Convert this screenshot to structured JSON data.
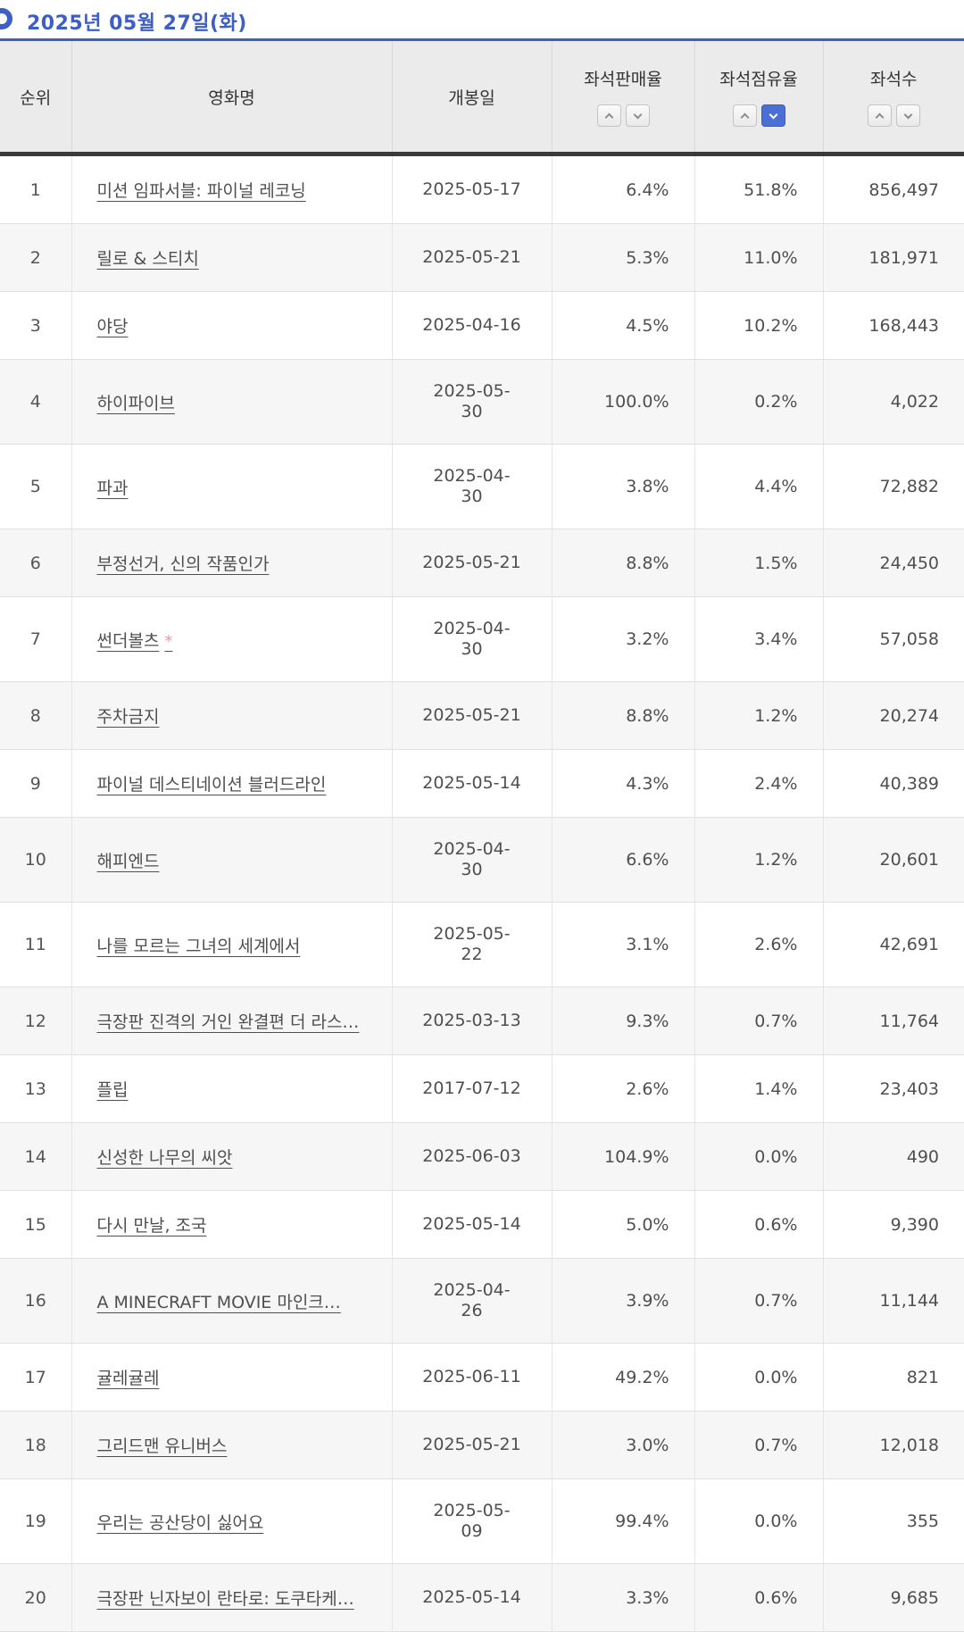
{
  "page": {
    "title": "2025년 05월 27일(화)"
  },
  "colors": {
    "accent": "#3d5ec5",
    "sort_active": "#4a6fd6",
    "star_pink": "#ee8fb4",
    "header_bg": "#ebebeb",
    "header_border": "#3a3a3a"
  },
  "table": {
    "columns": [
      {
        "key": "rank",
        "label": "순위",
        "sortable": false
      },
      {
        "key": "title",
        "label": "영화명",
        "sortable": false
      },
      {
        "key": "release",
        "label": "개봉일",
        "sortable": false
      },
      {
        "key": "seat_sales_rate",
        "label": "좌석판매율",
        "sortable": true,
        "active_sort": null
      },
      {
        "key": "seat_share_rate",
        "label": "좌석점유율",
        "sortable": true,
        "active_sort": "desc"
      },
      {
        "key": "seat_count",
        "label": "좌석수",
        "sortable": true,
        "active_sort": null
      }
    ],
    "rows": [
      {
        "rank": "1",
        "title": "미션 임파서블: 파이널 레코닝",
        "title_mark": "",
        "release": "2025-05-17",
        "release_two_line": false,
        "seat_sales_rate": "6.4%",
        "seat_share_rate": "51.8%",
        "seat_count": "856,497"
      },
      {
        "rank": "2",
        "title": "릴로 & 스티치",
        "title_mark": "",
        "release": "2025-05-21",
        "release_two_line": false,
        "seat_sales_rate": "5.3%",
        "seat_share_rate": "11.0%",
        "seat_count": "181,971"
      },
      {
        "rank": "3",
        "title": "야당",
        "title_mark": "",
        "release": "2025-04-16",
        "release_two_line": false,
        "seat_sales_rate": "4.5%",
        "seat_share_rate": "10.2%",
        "seat_count": "168,443"
      },
      {
        "rank": "4",
        "title": "하이파이브",
        "title_mark": "",
        "release": "2025-05-30",
        "release_two_line": true,
        "seat_sales_rate": "100.0%",
        "seat_share_rate": "0.2%",
        "seat_count": "4,022"
      },
      {
        "rank": "5",
        "title": "파과",
        "title_mark": "",
        "release": "2025-04-30",
        "release_two_line": true,
        "seat_sales_rate": "3.8%",
        "seat_share_rate": "4.4%",
        "seat_count": "72,882"
      },
      {
        "rank": "6",
        "title": "부정선거, 신의 작품인가",
        "title_mark": "",
        "release": "2025-05-21",
        "release_two_line": false,
        "seat_sales_rate": "8.8%",
        "seat_share_rate": "1.5%",
        "seat_count": "24,450"
      },
      {
        "rank": "7",
        "title": "썬더볼츠",
        "title_mark": "*",
        "release": "2025-04-30",
        "release_two_line": true,
        "seat_sales_rate": "3.2%",
        "seat_share_rate": "3.4%",
        "seat_count": "57,058"
      },
      {
        "rank": "8",
        "title": "주차금지",
        "title_mark": "",
        "release": "2025-05-21",
        "release_two_line": false,
        "seat_sales_rate": "8.8%",
        "seat_share_rate": "1.2%",
        "seat_count": "20,274"
      },
      {
        "rank": "9",
        "title": "파이널 데스티네이션 블러드라인",
        "title_mark": "",
        "release": "2025-05-14",
        "release_two_line": false,
        "seat_sales_rate": "4.3%",
        "seat_share_rate": "2.4%",
        "seat_count": "40,389"
      },
      {
        "rank": "10",
        "title": "해피엔드",
        "title_mark": "",
        "release": "2025-04-30",
        "release_two_line": true,
        "seat_sales_rate": "6.6%",
        "seat_share_rate": "1.2%",
        "seat_count": "20,601"
      },
      {
        "rank": "11",
        "title": "나를 모르는 그녀의 세계에서",
        "title_mark": "",
        "release": "2025-05-22",
        "release_two_line": true,
        "seat_sales_rate": "3.1%",
        "seat_share_rate": "2.6%",
        "seat_count": "42,691"
      },
      {
        "rank": "12",
        "title": "극장판 진격의 거인 완결편 더 라스…",
        "title_mark": "",
        "release": "2025-03-13",
        "release_two_line": false,
        "seat_sales_rate": "9.3%",
        "seat_share_rate": "0.7%",
        "seat_count": "11,764"
      },
      {
        "rank": "13",
        "title": "플립",
        "title_mark": "",
        "release": "2017-07-12",
        "release_two_line": false,
        "seat_sales_rate": "2.6%",
        "seat_share_rate": "1.4%",
        "seat_count": "23,403"
      },
      {
        "rank": "14",
        "title": "신성한 나무의 씨앗",
        "title_mark": "",
        "release": "2025-06-03",
        "release_two_line": false,
        "seat_sales_rate": "104.9%",
        "seat_share_rate": "0.0%",
        "seat_count": "490"
      },
      {
        "rank": "15",
        "title": "다시 만날, 조국",
        "title_mark": "",
        "release": "2025-05-14",
        "release_two_line": false,
        "seat_sales_rate": "5.0%",
        "seat_share_rate": "0.6%",
        "seat_count": "9,390"
      },
      {
        "rank": "16",
        "title": "A MINECRAFT MOVIE 마인크…",
        "title_mark": "",
        "release": "2025-04-26",
        "release_two_line": true,
        "seat_sales_rate": "3.9%",
        "seat_share_rate": "0.7%",
        "seat_count": "11,144"
      },
      {
        "rank": "17",
        "title": "귤레귤레",
        "title_mark": "",
        "release": "2025-06-11",
        "release_two_line": false,
        "seat_sales_rate": "49.2%",
        "seat_share_rate": "0.0%",
        "seat_count": "821"
      },
      {
        "rank": "18",
        "title": "그리드맨 유니버스",
        "title_mark": "",
        "release": "2025-05-21",
        "release_two_line": false,
        "seat_sales_rate": "3.0%",
        "seat_share_rate": "0.7%",
        "seat_count": "12,018"
      },
      {
        "rank": "19",
        "title": "우리는 공산당이 싫어요",
        "title_mark": "",
        "release": "2025-05-09",
        "release_two_line": true,
        "seat_sales_rate": "99.4%",
        "seat_share_rate": "0.0%",
        "seat_count": "355"
      },
      {
        "rank": "20",
        "title": "극장판 닌자보이 란타로: 도쿠타케…",
        "title_mark": "",
        "release": "2025-05-14",
        "release_two_line": false,
        "seat_sales_rate": "3.3%",
        "seat_share_rate": "0.6%",
        "seat_count": "9,685"
      }
    ]
  }
}
